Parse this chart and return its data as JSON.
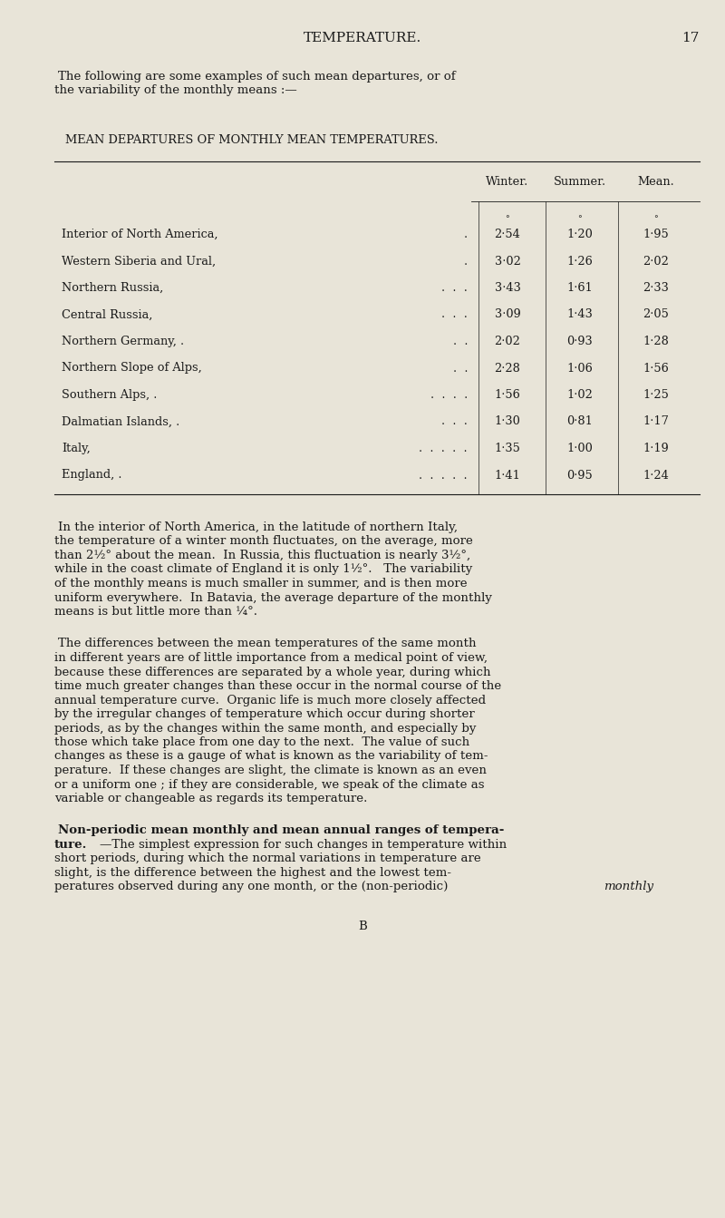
{
  "bg_color": "#e8e4d8",
  "text_color": "#1a1a1a",
  "page_width": 8.0,
  "page_height": 13.43,
  "header_title": "TEMPERATURE.",
  "header_page": "17",
  "intro_line1": "The following are some examples of such mean departures, or of",
  "intro_line2": "the variability of the monthly means :—",
  "table_title": "MEAN DEPARTURES OF MONTHLY MEAN TEMPERATURES.",
  "table_col_headers": [
    "Winter.",
    "Summer.",
    "Mean."
  ],
  "row_names": [
    "Interior of North America,",
    "Western Siberia and Ural,",
    "Northern Russia,",
    "Central Russia,",
    "Northern Germany, .",
    "Northern Slope of Alps,",
    "Southern Alps, .",
    "Dalmatian Islands, .",
    "Italy,",
    "England, ."
  ],
  "row_dots": [
    ".",
    ".",
    ".  .  .",
    ".  .  .",
    ".  .",
    ".  .",
    ".  .  .  .",
    ".  .  .",
    ".  .  .  .  .",
    ".  .  .  .  ."
  ],
  "row_winter": [
    "2·54",
    "3·02",
    "3·43",
    "3·09",
    "2·02",
    "2·28",
    "1·56",
    "1·30",
    "1·35",
    "1·41"
  ],
  "row_summer": [
    "1·20",
    "1·26",
    "1·61",
    "1·43",
    "0·93",
    "1·06",
    "1·02",
    "0·81",
    "1·00",
    "0·95"
  ],
  "row_mean": [
    "1·95",
    "2·02",
    "2·33",
    "2·05",
    "1·28",
    "1·56",
    "1·25",
    "1·17",
    "1·19",
    "1·24"
  ],
  "para1_lines": [
    "In the interior of North America, in the latitude of northern Italy,",
    "the temperature of a winter month fluctuates, on the average, more",
    "than 2½° about the mean.  In Russia, this fluctuation is nearly 3½°,",
    "while in the coast climate of England it is only 1½°.   The variability",
    "of the monthly means is much smaller in summer, and is then more",
    "uniform everywhere.  In Batavia, the average departure of the monthly",
    "means is but little more than ¼°."
  ],
  "para2_lines": [
    "The differences between the mean temperatures of the same month",
    "in different years are of little importance from a medical point of view,",
    "because these differences are separated by a whole year, during which",
    "time much greater changes than these occur in the normal course of the",
    "annual temperature curve.  Organic life is much more closely affected",
    "by the irregular changes of temperature which occur during shorter",
    "periods, as by the changes within the same month, and especially by",
    "those which take place from one day to the next.  The value of such",
    "changes as these is a gauge of what is known as the variability of tem-",
    "perature.  If these changes are slight, the climate is known as an even",
    "or a uniform one ; if they are considerable, we speak of the climate as",
    "variable or changeable as regards its temperature."
  ],
  "para3_bold_line1": "Non-periodic mean monthly and mean annual ranges of tempera-",
  "para3_bold_line2": "ture.",
  "para3_rest_lines": [
    "—The simplest expression for such changes in temperature within",
    "short periods, during which the normal variations in temperature are",
    "slight, is the difference between the highest and the lowest tem-",
    "peratures observed during any one month, or the (non-periodic) "
  ],
  "para3_italic_word": "monthly",
  "footer": "B"
}
